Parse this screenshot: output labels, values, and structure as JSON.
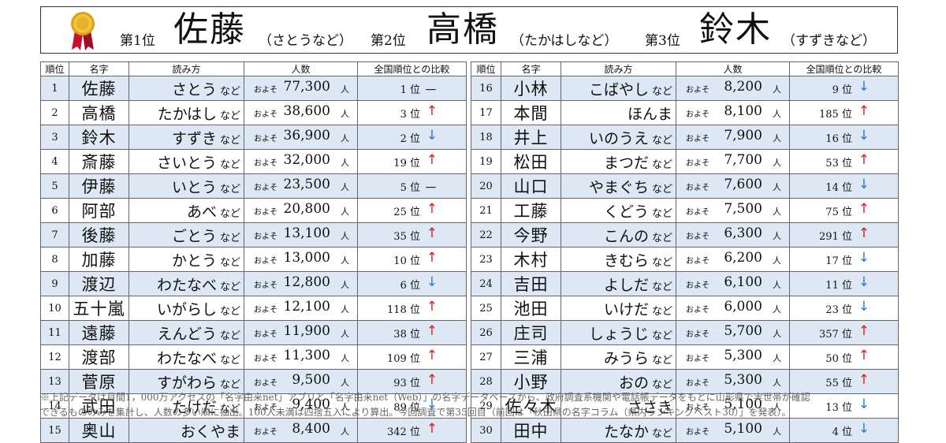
{
  "header": {
    "items": [
      {
        "rank": "第1位",
        "name": "佐藤",
        "reading": "（さとうなど）"
      },
      {
        "rank": "第2位",
        "name": "高橋",
        "reading": "（たかはしなど）"
      },
      {
        "rank": "第3位",
        "name": "鈴木",
        "reading": "（すずきなど）"
      }
    ]
  },
  "columns": [
    "順位",
    "名字",
    "読み方",
    "人数",
    "全国順位との比較"
  ],
  "labels": {
    "nado": "など",
    "oyoso": "およそ",
    "hito": "人",
    "pos_suffix": "位"
  },
  "colors": {
    "up": "#e0201a",
    "down": "#2a78d4",
    "row_shade": "#dde8f4"
  },
  "left_rows": [
    {
      "rank": "1",
      "name": "佐藤",
      "reading": "さとう",
      "nado": true,
      "count": "77,300",
      "national": "1",
      "trend": "flat"
    },
    {
      "rank": "2",
      "name": "高橋",
      "reading": "たかはし",
      "nado": true,
      "count": "38,600",
      "national": "3",
      "trend": "up"
    },
    {
      "rank": "3",
      "name": "鈴木",
      "reading": "すずき",
      "nado": true,
      "count": "36,900",
      "national": "2",
      "trend": "down"
    },
    {
      "rank": "4",
      "name": "斎藤",
      "reading": "さいとう",
      "nado": true,
      "count": "32,000",
      "national": "19",
      "trend": "up"
    },
    {
      "rank": "5",
      "name": "伊藤",
      "reading": "いとう",
      "nado": true,
      "count": "23,500",
      "national": "5",
      "trend": "flat"
    },
    {
      "rank": "6",
      "name": "阿部",
      "reading": "あべ",
      "nado": true,
      "count": "20,800",
      "national": "25",
      "trend": "up"
    },
    {
      "rank": "7",
      "name": "後藤",
      "reading": "ごとう",
      "nado": true,
      "count": "13,100",
      "national": "35",
      "trend": "up"
    },
    {
      "rank": "8",
      "name": "加藤",
      "reading": "かとう",
      "nado": true,
      "count": "13,000",
      "national": "10",
      "trend": "up"
    },
    {
      "rank": "9",
      "name": "渡辺",
      "reading": "わたなべ",
      "nado": true,
      "count": "12,800",
      "national": "6",
      "trend": "down"
    },
    {
      "rank": "10",
      "name": "五十嵐",
      "reading": "いがらし",
      "nado": true,
      "count": "12,100",
      "national": "118",
      "trend": "up"
    },
    {
      "rank": "11",
      "name": "遠藤",
      "reading": "えんどう",
      "nado": true,
      "count": "11,900",
      "national": "38",
      "trend": "up"
    },
    {
      "rank": "12",
      "name": "渡部",
      "reading": "わたなべ",
      "nado": true,
      "count": "11,300",
      "national": "109",
      "trend": "up"
    },
    {
      "rank": "13",
      "name": "菅原",
      "reading": "すがわら",
      "nado": true,
      "count": "9,500",
      "national": "93",
      "trend": "up"
    },
    {
      "rank": "14",
      "name": "武田",
      "reading": "たけだ",
      "nado": true,
      "count": "9,400",
      "national": "89",
      "trend": "down"
    },
    {
      "rank": "15",
      "name": "奥山",
      "reading": "おくやま",
      "nado": false,
      "count": "8,400",
      "national": "342",
      "trend": "up"
    }
  ],
  "right_rows": [
    {
      "rank": "16",
      "name": "小林",
      "reading": "こばやし",
      "nado": true,
      "count": "8,200",
      "national": "9",
      "trend": "down"
    },
    {
      "rank": "17",
      "name": "本間",
      "reading": "ほんま",
      "nado": false,
      "count": "8,100",
      "national": "185",
      "trend": "up"
    },
    {
      "rank": "18",
      "name": "井上",
      "reading": "いのうえ",
      "nado": true,
      "count": "7,900",
      "national": "16",
      "trend": "down"
    },
    {
      "rank": "19",
      "name": "松田",
      "reading": "まつだ",
      "nado": true,
      "count": "7,700",
      "national": "53",
      "trend": "up"
    },
    {
      "rank": "20",
      "name": "山口",
      "reading": "やまぐち",
      "nado": true,
      "count": "7,600",
      "national": "14",
      "trend": "down"
    },
    {
      "rank": "21",
      "name": "工藤",
      "reading": "くどう",
      "nado": true,
      "count": "7,500",
      "national": "75",
      "trend": "up"
    },
    {
      "rank": "22",
      "name": "今野",
      "reading": "こんの",
      "nado": true,
      "count": "6,300",
      "national": "291",
      "trend": "up"
    },
    {
      "rank": "23",
      "name": "木村",
      "reading": "きむら",
      "nado": true,
      "count": "6,200",
      "national": "17",
      "trend": "down"
    },
    {
      "rank": "24",
      "name": "吉田",
      "reading": "よしだ",
      "nado": true,
      "count": "6,100",
      "national": "11",
      "trend": "down"
    },
    {
      "rank": "25",
      "name": "池田",
      "reading": "いけだ",
      "nado": true,
      "count": "6,000",
      "national": "23",
      "trend": "down"
    },
    {
      "rank": "26",
      "name": "庄司",
      "reading": "しょうじ",
      "nado": true,
      "count": "5,700",
      "national": "357",
      "trend": "up"
    },
    {
      "rank": "27",
      "name": "三浦",
      "reading": "みうら",
      "nado": true,
      "count": "5,300",
      "national": "50",
      "trend": "up"
    },
    {
      "rank": "28",
      "name": "小野",
      "reading": "おの",
      "nado": true,
      "count": "5,300",
      "national": "55",
      "trend": "up"
    },
    {
      "rank": "29",
      "name": "佐々木",
      "reading": "ささき",
      "nado": false,
      "count": "5,100",
      "national": "13",
      "trend": "down"
    },
    {
      "rank": "30",
      "name": "田中",
      "reading": "たなか",
      "nado": true,
      "count": "5,100",
      "national": "4",
      "trend": "down"
    }
  ],
  "footnote": {
    "line1": "※上記データは月間1，000万アクセスの「名字由来net」アプリと「名字由来net（Web）」の名字データベースから、政府調査系機関や電話帳データをもとに山形県で実世帯が確認",
    "line2": "できるもののみを集計し、人数の多い順に抽出。100人未満は四捨五入により算出。今回調査で第35回目（前回は「秋田県の名字コラム（県内ランキングベスト30）」を発表）。"
  }
}
